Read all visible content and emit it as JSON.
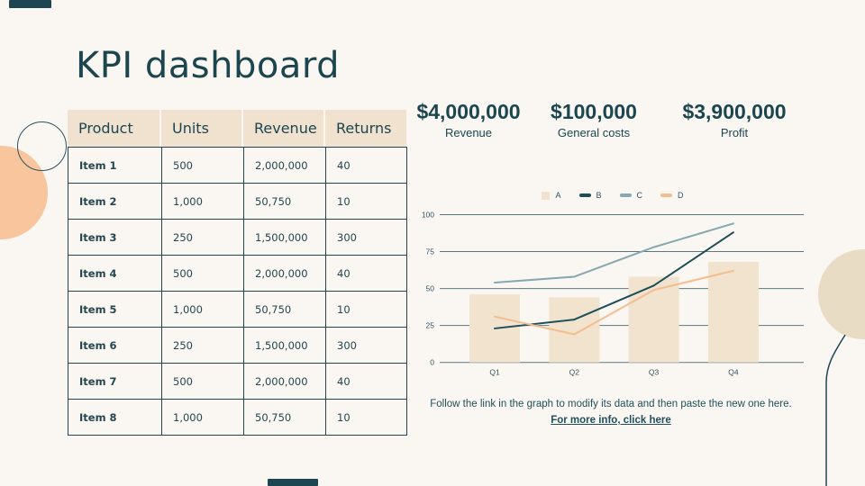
{
  "slide": {
    "title": "KPI dashboard",
    "colors": {
      "background": "#faf6f1",
      "teal": "#1c4752",
      "header_beige": "#f1e2d0",
      "peach": "#f8c59c",
      "beige_circle": "#e9dcc5",
      "gridline": "#5d7880"
    }
  },
  "table": {
    "headers": [
      "Product",
      "Units",
      "Revenue",
      "Returns"
    ],
    "rows": [
      [
        "Item 1",
        "500",
        "2,000,000",
        "40"
      ],
      [
        "Item 2",
        "1,000",
        "50,750",
        "10"
      ],
      [
        "Item 3",
        "250",
        "1,500,000",
        "300"
      ],
      [
        "Item 4",
        "500",
        "2,000,000",
        "40"
      ],
      [
        "Item 5",
        "1,000",
        "50,750",
        "10"
      ],
      [
        "Item 6",
        "250",
        "1,500,000",
        "300"
      ],
      [
        "Item 7",
        "500",
        "2,000,000",
        "40"
      ],
      [
        "Item 8",
        "1,000",
        "50,750",
        "10"
      ]
    ]
  },
  "kpis": [
    {
      "value": "$4,000,000",
      "label": "Revenue"
    },
    {
      "value": "$100,000",
      "label": "General costs"
    },
    {
      "value": "$3,900,000",
      "label": "Profit"
    }
  ],
  "chart_data": {
    "type": "combo (bar + line)",
    "title": "",
    "categories": [
      "Q1",
      "Q2",
      "Q3",
      "Q4"
    ],
    "series": [
      {
        "name": "A",
        "type": "bar",
        "color": "#f1e3cd",
        "values": [
          46,
          44,
          58,
          68
        ]
      },
      {
        "name": "B",
        "type": "line",
        "color": "#1d4e5a",
        "values": [
          23,
          29,
          52,
          88
        ]
      },
      {
        "name": "C",
        "type": "line",
        "color": "#85a8b3",
        "values": [
          54,
          58,
          78,
          94
        ]
      },
      {
        "name": "D",
        "type": "line",
        "color": "#f4bd8f",
        "values": [
          31,
          19,
          49,
          62
        ]
      }
    ],
    "ylim": [
      0,
      100
    ],
    "yticks": [
      0,
      25,
      50,
      75,
      100
    ],
    "legend_position": "top",
    "grid": true
  },
  "footer": {
    "text": "Follow the link in the graph to modify its data and then paste the new one here. ",
    "link_text": "For more info, click here"
  }
}
